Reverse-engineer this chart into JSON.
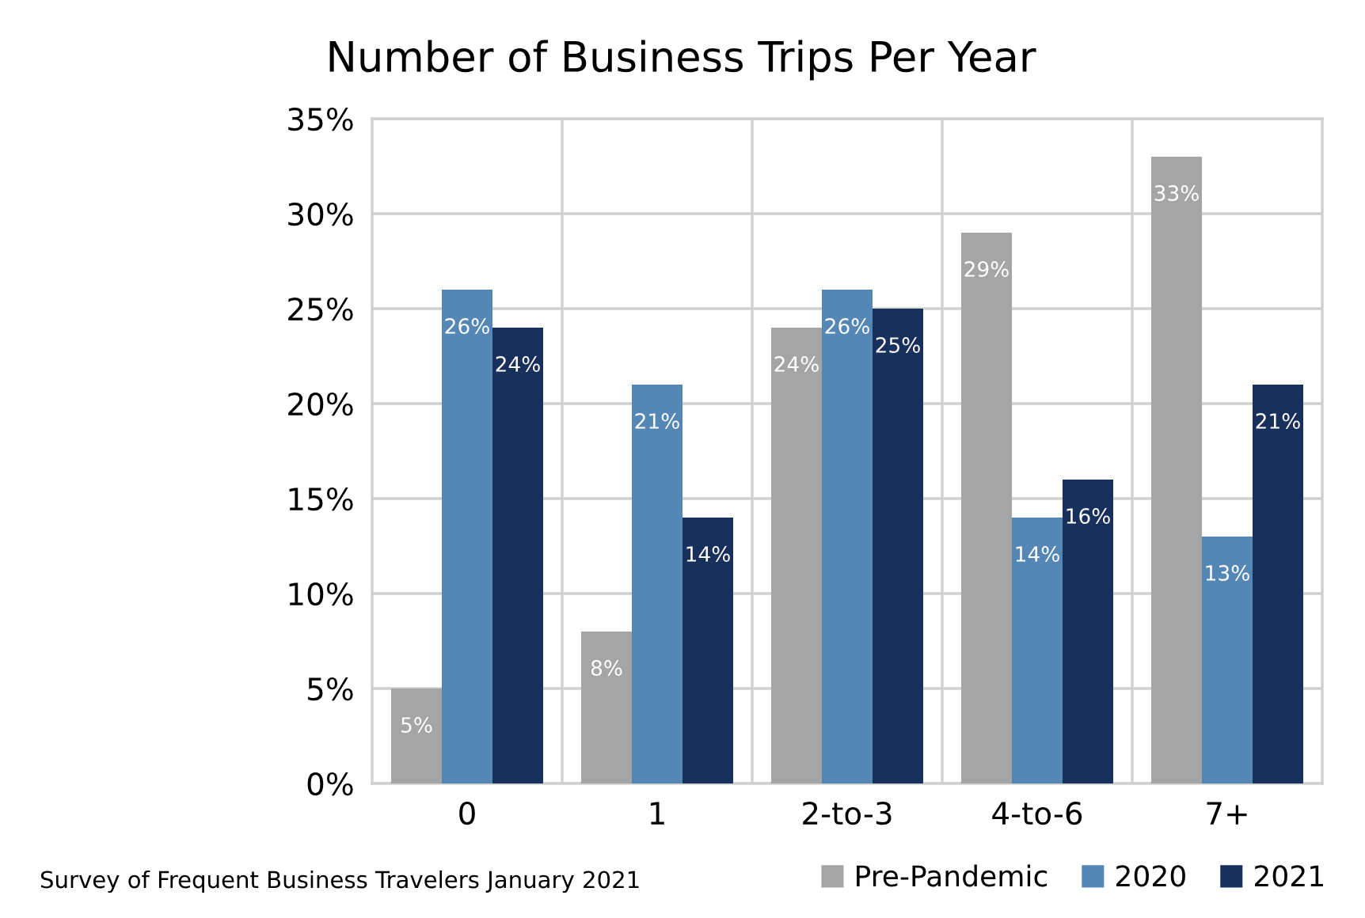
{
  "chart_data": {
    "type": "bar",
    "title": "Number of Business Trips Per Year",
    "categories": [
      "0",
      "1",
      "2-to-3",
      "4-to-6",
      "7+"
    ],
    "series": [
      {
        "name": "Pre-Pandemic",
        "color": "#a5a5a5",
        "values": [
          5,
          8,
          24,
          29,
          33
        ]
      },
      {
        "name": "2020",
        "color": "#5487b5",
        "values": [
          26,
          21,
          26,
          14,
          13
        ]
      },
      {
        "name": "2021",
        "color": "#17305c",
        "values": [
          24,
          14,
          25,
          16,
          21
        ]
      }
    ],
    "ylim": [
      0,
      35
    ],
    "yticks": [
      {
        "value": 0,
        "label": "0%"
      },
      {
        "value": 5,
        "label": "5%"
      },
      {
        "value": 10,
        "label": "10%"
      },
      {
        "value": 15,
        "label": "15%"
      },
      {
        "value": 20,
        "label": "20%"
      },
      {
        "value": 25,
        "label": "25%"
      },
      {
        "value": 30,
        "label": "30%"
      },
      {
        "value": 35,
        "label": "35%"
      }
    ],
    "value_labels": [
      [
        "5%",
        "8%",
        "24%",
        "29%",
        "33%"
      ],
      [
        "26%",
        "21%",
        "26%",
        "14%",
        "13%"
      ],
      [
        "24%",
        "14%",
        "25%",
        "16%",
        "21%"
      ]
    ],
    "grid": true,
    "legend": "bottom right",
    "annotations": [
      "Survey of Frequent Business Travelers January 2021"
    ]
  }
}
